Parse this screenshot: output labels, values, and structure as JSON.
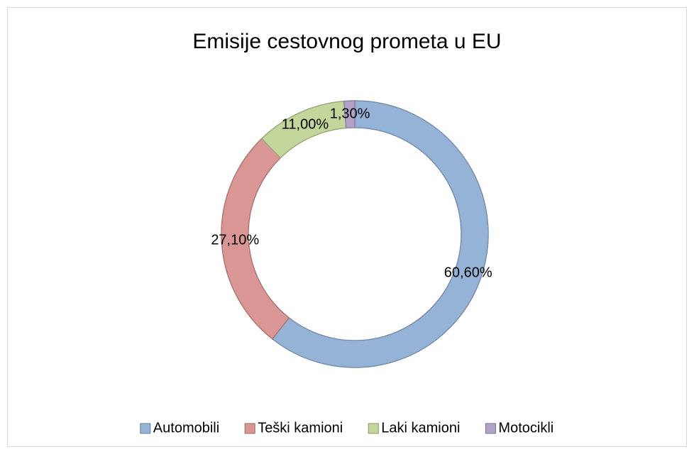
{
  "chart_data": {
    "type": "donut",
    "title": "Emisije cestovnog prometa u EU",
    "categories": [
      "Automobili",
      "Teški kamioni",
      "Laki kamioni",
      "Motocikli"
    ],
    "values": [
      60.6,
      27.1,
      11.0,
      1.3
    ],
    "value_labels": [
      "60,60%",
      "27,10%",
      "11,00%",
      "1,30%"
    ],
    "colors": [
      "#95b3d7",
      "#d99694",
      "#c3d69b",
      "#b3a2c7"
    ],
    "legend": "bottom"
  }
}
